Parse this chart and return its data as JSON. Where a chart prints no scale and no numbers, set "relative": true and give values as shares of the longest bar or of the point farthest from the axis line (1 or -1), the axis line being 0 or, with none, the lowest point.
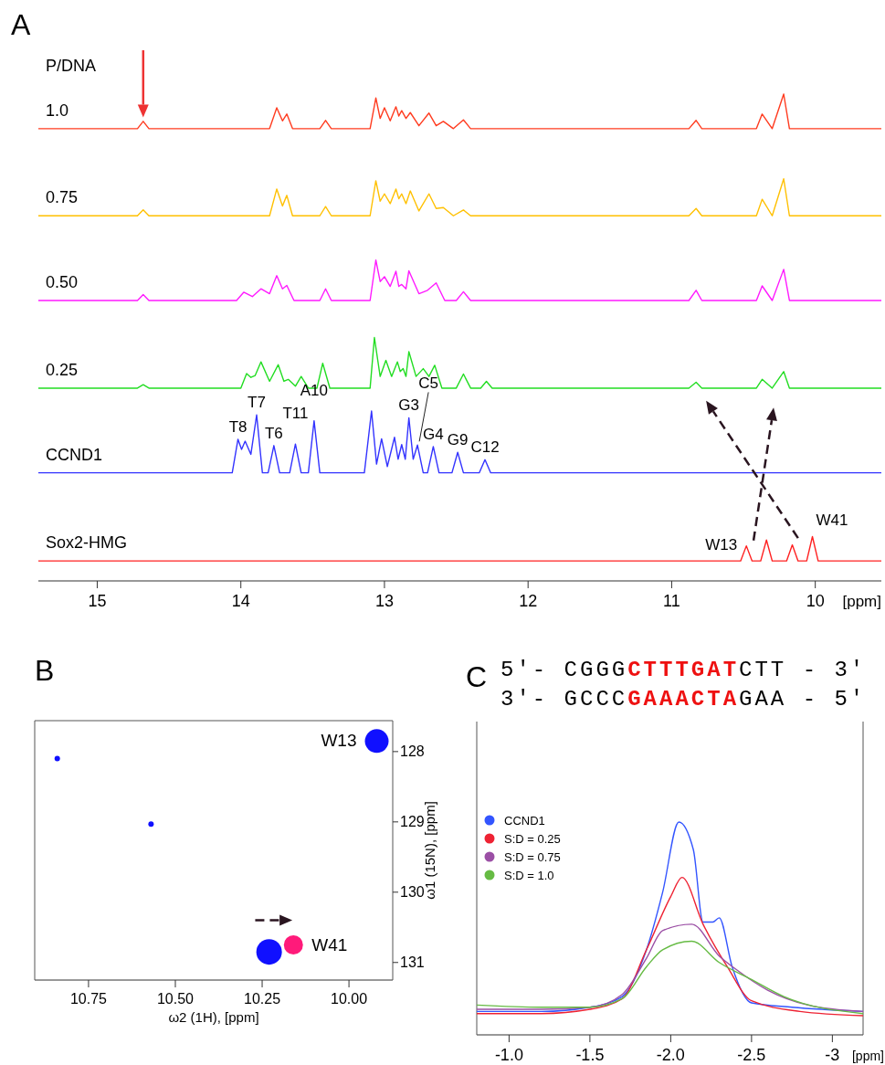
{
  "chart_data": [
    {
      "type": "line",
      "title": "A",
      "legend_title": "P/DNA",
      "xlabel": "[ppm]",
      "relative": true,
      "xlim": [
        15.41,
        9.54
      ],
      "xticks": [
        15,
        14,
        13,
        12,
        11,
        10
      ],
      "series": [
        {
          "name": "1.0",
          "color": "#ff3b1f",
          "x": [
            15.41,
            14.72,
            14.68,
            14.64,
            13.8,
            13.75,
            13.71,
            13.68,
            13.64,
            13.45,
            13.41,
            13.37,
            13.1,
            13.06,
            13.03,
            13.0,
            12.96,
            12.92,
            12.9,
            12.88,
            12.85,
            12.82,
            12.76,
            12.69,
            12.64,
            12.59,
            12.52,
            12.45,
            12.4,
            10.88,
            10.83,
            10.79,
            10.41,
            10.37,
            10.3,
            10.22,
            10.18,
            9.54
          ],
          "values": [
            0.929,
            0.929,
            0.944,
            0.929,
            0.929,
            0.972,
            0.945,
            0.959,
            0.929,
            0.929,
            0.946,
            0.929,
            0.929,
            0.992,
            0.95,
            0.972,
            0.945,
            0.974,
            0.955,
            0.966,
            0.95,
            0.962,
            0.935,
            0.961,
            0.935,
            0.944,
            0.929,
            0.947,
            0.929,
            0.929,
            0.946,
            0.929,
            0.929,
            0.959,
            0.929,
            1.0,
            0.929,
            0.929
          ]
        },
        {
          "name": "0.75",
          "color": "#ffc000",
          "x": [
            15.41,
            14.72,
            14.68,
            14.64,
            13.8,
            13.75,
            13.71,
            13.68,
            13.64,
            13.45,
            13.41,
            13.37,
            13.1,
            13.06,
            13.03,
            13.0,
            12.96,
            12.92,
            12.9,
            12.88,
            12.85,
            12.82,
            12.76,
            12.69,
            12.64,
            12.59,
            12.52,
            12.45,
            12.4,
            10.88,
            10.83,
            10.79,
            10.41,
            10.37,
            10.3,
            10.22,
            10.18,
            9.54
          ],
          "values": [
            0.75,
            0.75,
            0.762,
            0.75,
            0.75,
            0.805,
            0.77,
            0.792,
            0.75,
            0.75,
            0.769,
            0.75,
            0.75,
            0.822,
            0.78,
            0.795,
            0.775,
            0.805,
            0.785,
            0.795,
            0.775,
            0.801,
            0.76,
            0.795,
            0.765,
            0.767,
            0.75,
            0.762,
            0.75,
            0.75,
            0.765,
            0.75,
            0.75,
            0.784,
            0.75,
            0.826,
            0.75,
            0.75
          ]
        },
        {
          "name": "0.50",
          "color": "#ff1aff",
          "x": [
            15.41,
            14.72,
            14.68,
            14.64,
            14.03,
            13.98,
            13.92,
            13.86,
            13.8,
            13.75,
            13.71,
            13.68,
            13.63,
            13.45,
            13.41,
            13.37,
            13.1,
            13.06,
            13.03,
            13.0,
            12.96,
            12.92,
            12.9,
            12.88,
            12.85,
            12.83,
            12.76,
            12.7,
            12.64,
            12.58,
            12.5,
            12.45,
            12.4,
            10.88,
            10.83,
            10.79,
            10.41,
            10.37,
            10.3,
            10.22,
            10.18,
            9.54
          ],
          "values": [
            0.576,
            0.576,
            0.588,
            0.576,
            0.576,
            0.593,
            0.584,
            0.6,
            0.59,
            0.627,
            0.6,
            0.607,
            0.576,
            0.576,
            0.6,
            0.576,
            0.576,
            0.659,
            0.615,
            0.625,
            0.605,
            0.636,
            0.605,
            0.609,
            0.6,
            0.637,
            0.59,
            0.597,
            0.612,
            0.576,
            0.576,
            0.594,
            0.576,
            0.576,
            0.597,
            0.576,
            0.576,
            0.606,
            0.576,
            0.64,
            0.576,
            0.576
          ]
        },
        {
          "name": "0.25",
          "color": "#22dd22",
          "x": [
            15.41,
            14.72,
            14.68,
            14.64,
            14.0,
            13.96,
            13.93,
            13.9,
            13.86,
            13.8,
            13.74,
            13.7,
            13.67,
            13.62,
            13.58,
            13.53,
            13.47,
            13.43,
            13.38,
            13.1,
            13.07,
            13.03,
            12.99,
            12.95,
            12.91,
            12.89,
            12.87,
            12.85,
            12.83,
            12.78,
            12.73,
            12.69,
            12.65,
            12.6,
            12.5,
            12.45,
            12.4,
            12.33,
            12.29,
            12.25,
            10.88,
            10.83,
            10.79,
            10.41,
            10.37,
            10.3,
            10.22,
            10.18,
            9.54
          ],
          "values": [
            0.396,
            0.396,
            0.403,
            0.396,
            0.396,
            0.426,
            0.418,
            0.422,
            0.45,
            0.41,
            0.444,
            0.41,
            0.414,
            0.4,
            0.42,
            0.396,
            0.396,
            0.447,
            0.396,
            0.396,
            0.5,
            0.42,
            0.453,
            0.42,
            0.45,
            0.43,
            0.436,
            0.42,
            0.471,
            0.42,
            0.436,
            0.42,
            0.443,
            0.396,
            0.396,
            0.425,
            0.396,
            0.396,
            0.41,
            0.396,
            0.396,
            0.408,
            0.396,
            0.396,
            0.414,
            0.396,
            0.43,
            0.396,
            0.396
          ]
        },
        {
          "name": "CCND1",
          "color": "#3333ff",
          "x": [
            15.41,
            14.06,
            14.02,
            13.995,
            13.97,
            13.93,
            13.89,
            13.85,
            13.81,
            13.77,
            13.73,
            13.66,
            13.62,
            13.58,
            13.53,
            13.49,
            13.45,
            13.14,
            13.09,
            13.055,
            13.02,
            12.98,
            12.93,
            12.905,
            12.88,
            12.855,
            12.83,
            12.8,
            12.77,
            12.73,
            12.7,
            12.66,
            12.62,
            12.53,
            12.49,
            12.45,
            12.34,
            12.3,
            12.26,
            9.54
          ],
          "values": [
            0.222,
            0.222,
            0.291,
            0.27,
            0.287,
            0.26,
            0.341,
            0.222,
            0.222,
            0.278,
            0.222,
            0.222,
            0.281,
            0.222,
            0.222,
            0.329,
            0.222,
            0.222,
            0.349,
            0.24,
            0.292,
            0.235,
            0.295,
            0.25,
            0.28,
            0.25,
            0.335,
            0.25,
            0.279,
            0.222,
            0.222,
            0.276,
            0.222,
            0.222,
            0.264,
            0.222,
            0.222,
            0.249,
            0.222,
            0.222
          ]
        },
        {
          "name": "Sox2-HMG",
          "color": "#ff2020",
          "x": [
            15.41,
            10.52,
            10.48,
            10.44,
            10.38,
            10.34,
            10.3,
            10.2,
            10.16,
            10.12,
            10.06,
            10.02,
            9.98,
            9.54
          ],
          "values": [
            0.041,
            0.041,
            0.072,
            0.041,
            0.041,
            0.084,
            0.041,
            0.041,
            0.074,
            0.041,
            0.041,
            0.091,
            0.041,
            0.041
          ]
        }
      ],
      "annotations": [
        {
          "text": "T8",
          "x": 14.02,
          "y": 0.291
        },
        {
          "text": "T7",
          "x": 13.89,
          "y": 0.341
        },
        {
          "text": "T6",
          "x": 13.77,
          "y": 0.278
        },
        {
          "text": "T11",
          "x": 13.62,
          "y": 0.281
        },
        {
          "text": "A10",
          "x": 13.49,
          "y": 0.329
        },
        {
          "text": "G3",
          "x": 12.83,
          "y": 0.335
        },
        {
          "text": "C5",
          "x": 12.77,
          "y": 0.279
        },
        {
          "text": "G4",
          "x": 12.66,
          "y": 0.276
        },
        {
          "text": "G9",
          "x": 12.49,
          "y": 0.264
        },
        {
          "text": "C12",
          "x": 12.3,
          "y": 0.249
        },
        {
          "text": "W13",
          "x": 10.48,
          "y": 0.072
        },
        {
          "text": "W41",
          "x": 10.02,
          "y": 0.091
        }
      ]
    },
    {
      "type": "bubble",
      "title": "B",
      "xlabel": "ω2 (1H), [ppm]",
      "ylabel": "ω1 (15N), [ppm]",
      "xlim": [
        10.905,
        9.874
      ],
      "ylim": [
        131.25,
        127.56
      ],
      "xticks": [
        {
          "value": 10.75,
          "label": "10.75"
        },
        {
          "value": 10.5,
          "label": "10.50"
        },
        {
          "value": 10.25,
          "label": "10.25"
        },
        {
          "value": 10,
          "label": "10.00"
        }
      ],
      "yticks": [
        128,
        129,
        130,
        131
      ],
      "series": [
        {
          "color": "#1010ff",
          "x": [
            9.92,
            10.23
          ],
          "values": [
            127.85,
            130.85
          ],
          "sizes": [
            0.86,
            1
          ]
        },
        {
          "type": "scatter",
          "color": "#1010ff",
          "x": [
            10.84,
            10.57
          ],
          "values": [
            128.1,
            129.03
          ]
        },
        {
          "color": "#ff1a7a",
          "x": [
            10.16
          ],
          "values": [
            130.75
          ],
          "sizes": [
            0.56
          ]
        }
      ],
      "annotations": [
        {
          "text": "W13",
          "x": 9.92,
          "y": 127.85
        },
        {
          "text": "W41",
          "x": 10.16,
          "y": 130.75
        }
      ]
    },
    {
      "type": "line",
      "title": "C",
      "xlabel": "[ppm]",
      "relative": true,
      "legend": "left",
      "xlim": [
        -0.8,
        -3.19
      ],
      "xticks": [
        {
          "value": -1,
          "label": "-1.0"
        },
        {
          "value": -1.5,
          "label": "-1.5"
        },
        {
          "value": -2,
          "label": "-2.0"
        },
        {
          "value": -2.5,
          "label": "-2.5"
        },
        {
          "value": -3,
          "label": "-3"
        }
      ],
      "series": [
        {
          "name": "CCND1",
          "color": "#3355ff",
          "x": [
            -0.8,
            -1.2,
            -1.5,
            -1.7,
            -1.85,
            -1.95,
            -2.05,
            -2.14,
            -2.2,
            -2.26,
            -2.3,
            -2.38,
            -2.5,
            -2.75,
            -3.19
          ],
          "values": [
            0.11,
            0.11,
            0.13,
            0.18,
            0.4,
            0.67,
            1.0,
            0.87,
            0.53,
            0.53,
            0.55,
            0.32,
            0.15,
            0.13,
            0.11
          ]
        },
        {
          "name": "S:D = 0.25",
          "color": "#ee2233",
          "x": [
            -0.8,
            -1.2,
            -1.5,
            -1.7,
            -1.85,
            -2.0,
            -2.07,
            -2.2,
            -2.35,
            -2.5,
            -2.8,
            -3.19
          ],
          "values": [
            0.1,
            0.1,
            0.12,
            0.17,
            0.4,
            0.65,
            0.74,
            0.52,
            0.32,
            0.16,
            0.11,
            0.09
          ]
        },
        {
          "name": "S:D = 0.75",
          "color": "#9b4fa5",
          "x": [
            -0.8,
            -1.2,
            -1.5,
            -1.7,
            -1.85,
            -1.95,
            -2.13,
            -2.3,
            -2.4,
            -2.6,
            -2.85,
            -3.19
          ],
          "values": [
            0.12,
            0.12,
            0.13,
            0.19,
            0.36,
            0.49,
            0.52,
            0.37,
            0.31,
            0.21,
            0.14,
            0.11
          ]
        },
        {
          "name": "S:D = 1.0",
          "color": "#66bb44",
          "x": [
            -0.8,
            -1.2,
            -1.5,
            -1.7,
            -1.85,
            -1.95,
            -2.13,
            -2.3,
            -2.5,
            -2.7,
            -3.19
          ],
          "values": [
            0.14,
            0.13,
            0.13,
            0.17,
            0.32,
            0.4,
            0.44,
            0.34,
            0.26,
            0.18,
            0.1
          ]
        }
      ],
      "annotations": [
        "5′- CGGGCTTTGATCTT - 3′",
        "3′- GCCCGAAACTAGAA - 5′"
      ]
    }
  ]
}
